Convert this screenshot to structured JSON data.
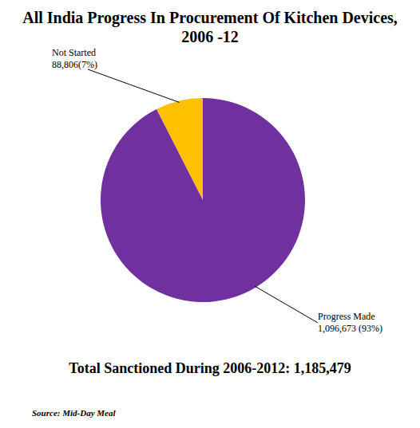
{
  "chart_data": {
    "type": "pie",
    "title": "All India Progress In Procurement Of Kitchen Devices, 2006 -12",
    "categories": [
      "Not Started",
      "Progress Made"
    ],
    "values": [
      88806,
      1096673
    ],
    "value_labels": [
      "88,806(7%)",
      "1,096,673 (93%)"
    ],
    "colors": [
      "#ffc000",
      "#7030a0"
    ],
    "data_labels": true,
    "annotations": [
      "Total Sanctioned During 2006-2012: 1,185,479"
    ],
    "source": "Source: Mid-Day Meal"
  }
}
